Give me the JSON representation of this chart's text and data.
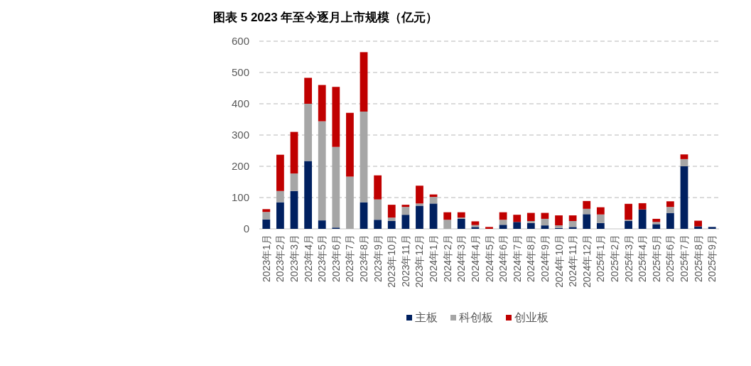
{
  "chart_data": {
    "type": "bar",
    "title": "图表 5 2023 年至今逐月上市规模（亿元）",
    "categories": [
      "2023年1月",
      "2023年2月",
      "2023年3月",
      "2023年4月",
      "2023年5月",
      "2023年6月",
      "2023年7月",
      "2023年8月",
      "2023年9月",
      "2023年10月",
      "2023年11月",
      "2023年12月",
      "2024年1月",
      "2024年2月",
      "2024年3月",
      "2024年4月",
      "2024年5月",
      "2024年6月",
      "2024年7月",
      "2024年8月",
      "2024年9月",
      "2024年10月",
      "2024年11月",
      "2024年12月",
      "2025年1月",
      "2025年2月",
      "2025年3月",
      "2025年4月",
      "2025年5月",
      "2025年6月",
      "2025年7月",
      "2025年8月",
      "2025年9月"
    ],
    "series": [
      {
        "name": "主板",
        "color": "#002060",
        "values": [
          30,
          85,
          121,
          217,
          27,
          4,
          0,
          85,
          29,
          25,
          45,
          74,
          81,
          0,
          32,
          6,
          0,
          13,
          22,
          19,
          11,
          3,
          6,
          47,
          19,
          0,
          25,
          62,
          15,
          51,
          200,
          8,
          6
        ]
      },
      {
        "name": "科创板",
        "color": "#a6a6a6",
        "values": [
          24,
          36,
          56,
          183,
          317,
          258,
          167,
          290,
          65,
          11,
          25,
          7,
          21,
          29,
          4,
          6,
          0,
          16,
          0,
          6,
          21,
          8,
          19,
          17,
          27,
          0,
          4,
          0,
          7,
          19,
          23,
          0,
          0
        ]
      },
      {
        "name": "创业板",
        "color": "#c00000",
        "values": [
          9,
          116,
          133,
          83,
          116,
          192,
          204,
          190,
          77,
          41,
          7,
          57,
          8,
          24,
          17,
          12,
          6,
          24,
          23,
          26,
          19,
          32,
          18,
          25,
          23,
          0,
          51,
          20,
          10,
          18,
          15,
          18,
          0
        ]
      }
    ],
    "stacked": true,
    "ylim": [
      0,
      600
    ],
    "yticks": [
      0,
      100,
      200,
      300,
      400,
      500,
      600
    ],
    "grid": "y",
    "legend": "bottom"
  }
}
